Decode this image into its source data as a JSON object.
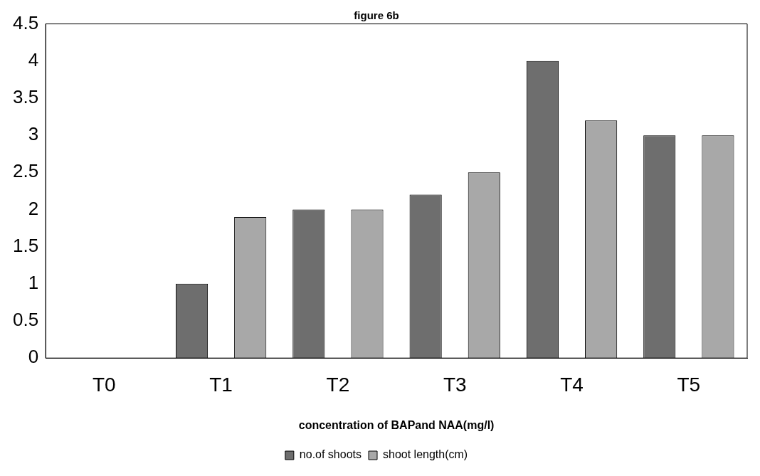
{
  "chart_data": {
    "type": "bar",
    "title": "figure 6b",
    "xlabel": "concentration of BAPand NAA(mg/l)",
    "categories": [
      "T0",
      "T1",
      "T2",
      "T3",
      "T4",
      "T5"
    ],
    "series": [
      {
        "name": "no.of shoots",
        "color": "#6e6e6e",
        "values": [
          0,
          1.0,
          2.0,
          2.2,
          4.0,
          3.0
        ]
      },
      {
        "name": "shoot length(cm)",
        "color": "#a8a8a8",
        "values": [
          0,
          1.9,
          2.0,
          2.5,
          3.2,
          3.0
        ]
      }
    ],
    "ylim": [
      0,
      4.5
    ],
    "yticks": [
      0,
      0.5,
      1,
      1.5,
      2,
      2.5,
      3,
      3.5,
      4,
      4.5
    ],
    "grid": false,
    "legend": "bottom"
  }
}
